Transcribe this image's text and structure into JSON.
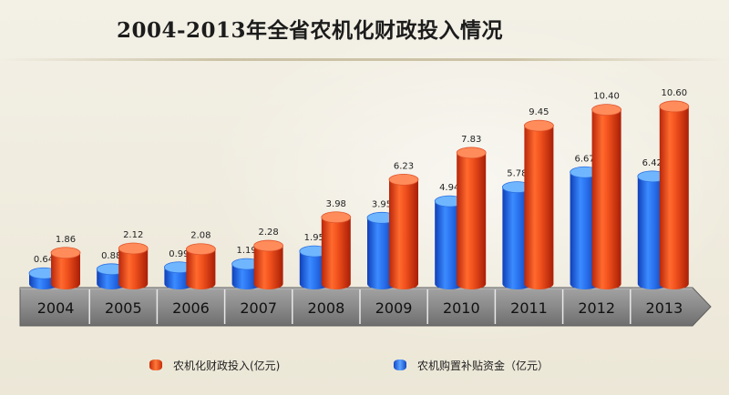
{
  "title": "2004-2013年全省农机化财政投入情况",
  "colors": {
    "red_series": "#e8431a",
    "red_top": "#ff8c5a",
    "blue_series": "#1e64e6",
    "blue_top": "#6fb6ff",
    "year_band": "#8c8c8c",
    "year_band_dark": "#6f6f6f"
  },
  "chart_data": {
    "type": "bar",
    "style": "3d-cylinder",
    "categories": [
      "2004",
      "2005",
      "2006",
      "2007",
      "2008",
      "2009",
      "2010",
      "2011",
      "2012",
      "2013"
    ],
    "series": [
      {
        "name": "农机化财政投入(亿元)",
        "color": "red",
        "values": [
          1.86,
          2.12,
          2.08,
          2.28,
          3.98,
          6.23,
          7.83,
          9.45,
          10.4,
          10.6
        ],
        "labels": [
          "1.86",
          "2.12",
          "2.08",
          "2.28",
          "3.98",
          "6.23",
          "7.83",
          "9.45",
          "10.40",
          "10.60"
        ]
      },
      {
        "name": "农机购置补贴资金（亿元）",
        "color": "blue",
        "values": [
          0.64,
          0.88,
          0.99,
          1.19,
          1.95,
          3.95,
          4.94,
          5.78,
          6.67,
          6.42
        ],
        "labels": [
          "0.64",
          "0.88",
          "0.99",
          "1.19",
          "1.95",
          "3.95",
          "4.94",
          "5.78",
          "6.67",
          "6.42"
        ]
      }
    ],
    "xlabel": "",
    "ylabel": "",
    "ylim": [
      0,
      11.5
    ],
    "grid": false,
    "legend": "bottom"
  }
}
